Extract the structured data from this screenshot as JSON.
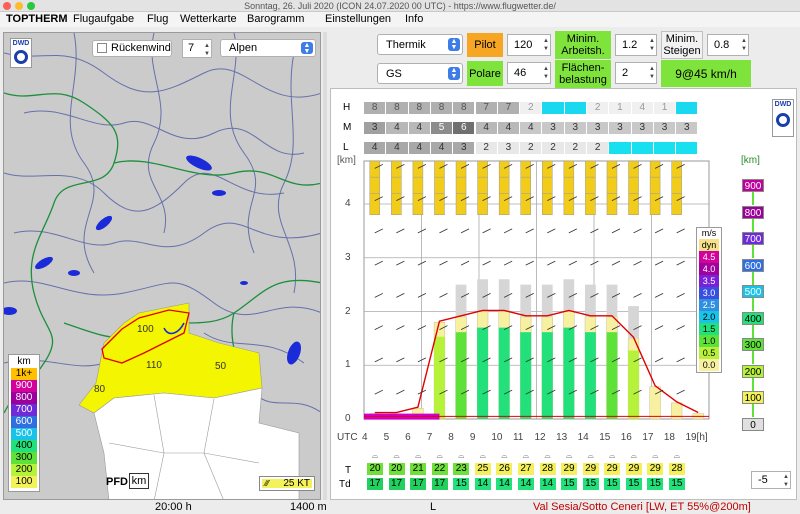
{
  "window": {
    "title": "Sonntag, 26. Juli 2020 (ICON 24.07.2020 00 UTC) - https://www.flugwetter.de/"
  },
  "menu": [
    "TOPTHERM",
    "Flugaufgabe",
    "Flug",
    "Wetterkarte",
    "Barogramm",
    "Einstellungen",
    "Info"
  ],
  "map": {
    "logo": "DWD",
    "rueckenwind_label": "Rückenwind",
    "wind_value": "7",
    "region": "Alpen",
    "legend_title": "km",
    "legend": [
      {
        "label": "1k+",
        "color": "#ffc000"
      },
      {
        "label": "900",
        "color": "#d4009c"
      },
      {
        "label": "800",
        "color": "#9c009c"
      },
      {
        "label": "700",
        "color": "#6f2bd8"
      },
      {
        "label": "600",
        "color": "#2f6fe0"
      },
      {
        "label": "500",
        "color": "#19c3e8"
      },
      {
        "label": "400",
        "color": "#22e07a"
      },
      {
        "label": "300",
        "color": "#5ee23a"
      },
      {
        "label": "200",
        "color": "#b6f23a"
      },
      {
        "label": "100",
        "color": "#f4f25a"
      }
    ],
    "region_labels": [
      "100",
      "110",
      "50",
      "80"
    ],
    "pfd_label": "PFD",
    "pfd_unit": "km",
    "wind_scale": "25 KT"
  },
  "controls": {
    "mode": "Thermik",
    "pilot_label": "Pilot",
    "pilot_value": "120",
    "min_arbeit_label": "Minim. Arbeitsh.",
    "min_arbeit_value": "1.2",
    "min_steigen_label": "Minim. Steigen",
    "min_steigen_value": "0.8",
    "glider": "GS",
    "polare_label": "Polare",
    "polare_value": "46",
    "flaechen_label": "Flächen- belastung",
    "flaechen_value": "2",
    "result": "9@45 km/h"
  },
  "sounding": {
    "logo": "DWD",
    "cloud_rows": [
      {
        "label": "H",
        "cells": [
          "8",
          "8",
          "8",
          "8",
          "8",
          "7",
          "7",
          "2",
          "",
          "",
          "2",
          "1",
          "4",
          "1",
          ""
        ]
      },
      {
        "label": "M",
        "cells": [
          "3",
          "4",
          "4",
          "5",
          "6",
          "4",
          "4",
          "4",
          "3",
          "3",
          "3",
          "3",
          "3",
          "3",
          "3"
        ]
      },
      {
        "label": "L",
        "cells": [
          "4",
          "4",
          "4",
          "4",
          "3",
          "2",
          "3",
          "2",
          "2",
          "2",
          "2",
          "",
          "",
          "",
          ""
        ]
      }
    ],
    "y_unit": "[km]",
    "y_ticks": [
      "4",
      "3",
      "2",
      "1",
      "0"
    ],
    "x_unit": "UTC",
    "x_ticks": [
      "4",
      "5",
      "6",
      "7",
      "8",
      "9",
      "10",
      "11",
      "12",
      "13",
      "14",
      "15",
      "16",
      "17",
      "18",
      "19[h]"
    ],
    "ms_title": "m/s",
    "ms_legend": [
      {
        "label": "dyn",
        "color": "#f7e08a"
      },
      {
        "label": "4.5",
        "color": "#d4009c"
      },
      {
        "label": "4.0",
        "color": "#a0009c"
      },
      {
        "label": "3.5",
        "color": "#7a20d8"
      },
      {
        "label": "3.0",
        "color": "#3a4fe0"
      },
      {
        "label": "2.5",
        "color": "#2f8fe0"
      },
      {
        "label": "2.0",
        "color": "#19c3e8"
      },
      {
        "label": "1.5",
        "color": "#22e07a"
      },
      {
        "label": "1.0",
        "color": "#5ee23a"
      },
      {
        "label": "0.5",
        "color": "#b6f23a"
      },
      {
        "label": "0.0",
        "color": "#f7f0a0"
      }
    ],
    "km_title": "[km]",
    "km_legend": [
      {
        "label": "900",
        "color": "#c0009c"
      },
      {
        "label": "800",
        "color": "#9c009c"
      },
      {
        "label": "700",
        "color": "#6f2bd8"
      },
      {
        "label": "600",
        "color": "#2f6fe0"
      },
      {
        "label": "500",
        "color": "#19c3e8"
      },
      {
        "label": "400",
        "color": "#22e07a"
      },
      {
        "label": "300",
        "color": "#5ee23a"
      },
      {
        "label": "200",
        "color": "#b6f23a"
      },
      {
        "label": "100",
        "color": "#f4f25a"
      },
      {
        "label": "0",
        "color": "#e0e0e0"
      }
    ],
    "t_label": "T",
    "td_label": "Td",
    "t_values": [
      "20",
      "20",
      "21",
      "22",
      "23",
      "25",
      "26",
      "27",
      "28",
      "29",
      "29",
      "29",
      "29",
      "29",
      "28"
    ],
    "td_values": [
      "17",
      "17",
      "17",
      "17",
      "15",
      "14",
      "14",
      "14",
      "14",
      "15",
      "15",
      "15",
      "15",
      "15",
      "15"
    ],
    "offset_value": "-5"
  },
  "status": {
    "time": "20:00 h",
    "height": "1400 m",
    "mode": "L",
    "location": "Val Sesia/Sotto Ceneri [LW, ET  55%@200m]"
  }
}
